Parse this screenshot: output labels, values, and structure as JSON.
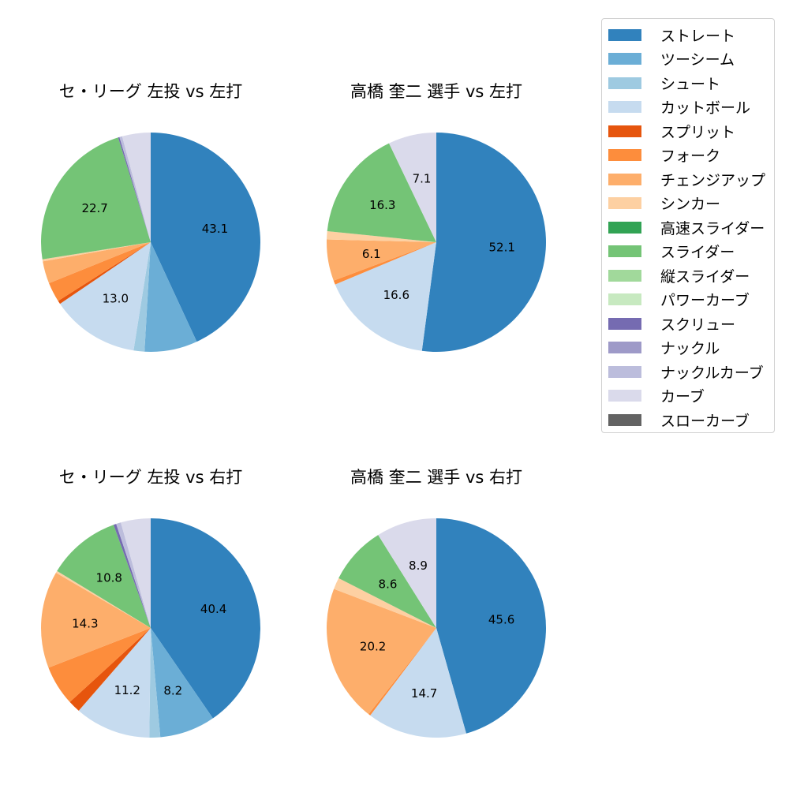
{
  "legend": {
    "items": [
      {
        "label": "ストレート",
        "color": "#3182bd"
      },
      {
        "label": "ツーシーム",
        "color": "#6baed6"
      },
      {
        "label": "シュート",
        "color": "#9ecae1"
      },
      {
        "label": "カットボール",
        "color": "#c6dbef"
      },
      {
        "label": "スプリット",
        "color": "#e6550d"
      },
      {
        "label": "フォーク",
        "color": "#fd8d3c"
      },
      {
        "label": "チェンジアップ",
        "color": "#fdae6b"
      },
      {
        "label": "シンカー",
        "color": "#fdd0a2"
      },
      {
        "label": "高速スライダー",
        "color": "#31a354"
      },
      {
        "label": "スライダー",
        "color": "#74c476"
      },
      {
        "label": "縦スライダー",
        "color": "#a1d99b"
      },
      {
        "label": "パワーカーブ",
        "color": "#c7e9c0"
      },
      {
        "label": "スクリュー",
        "color": "#756bb1"
      },
      {
        "label": "ナックル",
        "color": "#9e9ac8"
      },
      {
        "label": "ナックルカーブ",
        "color": "#bcbddc"
      },
      {
        "label": "カーブ",
        "color": "#dadaeb"
      },
      {
        "label": "スローカーブ",
        "color": "#636363"
      }
    ]
  },
  "chart_data": [
    {
      "type": "pie",
      "title": "セ・リーグ 左投 vs 左打",
      "categories": [
        "ストレート",
        "ツーシーム",
        "シュート",
        "カットボール",
        "スプリット",
        "フォーク",
        "チェンジアップ",
        "シンカー",
        "スライダー",
        "スクリュー",
        "ナックルカーブ",
        "カーブ"
      ],
      "values": [
        43.1,
        7.8,
        1.6,
        13.0,
        0.5,
        2.9,
        3.3,
        0.3,
        22.7,
        0.2,
        0.4,
        4.2
      ],
      "labels_shown": [
        "43.1",
        "",
        "",
        "13.0",
        "",
        "",
        "",
        "",
        "22.7",
        "",
        "",
        ""
      ],
      "colors": [
        "#3182bd",
        "#6baed6",
        "#9ecae1",
        "#c6dbef",
        "#e6550d",
        "#fd8d3c",
        "#fdae6b",
        "#fdd0a2",
        "#74c476",
        "#756bb1",
        "#bcbddc",
        "#dadaeb"
      ]
    },
    {
      "type": "pie",
      "title": "高橋 奎二 選手 vs 左打",
      "categories": [
        "ストレート",
        "カットボール",
        "フォーク",
        "チェンジアップ",
        "シンカー",
        "スライダー",
        "カーブ"
      ],
      "values": [
        52.1,
        16.6,
        0.6,
        6.1,
        1.2,
        16.3,
        7.1
      ],
      "labels_shown": [
        "52.1",
        "16.6",
        "",
        "6.1",
        "",
        "16.3",
        "7.1"
      ],
      "colors": [
        "#3182bd",
        "#c6dbef",
        "#fd8d3c",
        "#fdae6b",
        "#fdd0a2",
        "#74c476",
        "#dadaeb"
      ]
    },
    {
      "type": "pie",
      "title": "セ・リーグ 左投 vs 右打",
      "categories": [
        "ストレート",
        "ツーシーム",
        "シュート",
        "カットボール",
        "スプリット",
        "フォーク",
        "チェンジアップ",
        "シンカー",
        "スライダー",
        "スクリュー",
        "ナックルカーブ",
        "カーブ"
      ],
      "values": [
        40.4,
        8.2,
        1.6,
        11.2,
        1.8,
        5.9,
        14.3,
        0.3,
        10.8,
        0.4,
        0.7,
        4.4
      ],
      "labels_shown": [
        "40.4",
        "8.2",
        "",
        "11.2",
        "",
        "",
        "14.3",
        "",
        "10.8",
        "",
        "",
        ""
      ],
      "colors": [
        "#3182bd",
        "#6baed6",
        "#9ecae1",
        "#c6dbef",
        "#e6550d",
        "#fd8d3c",
        "#fdae6b",
        "#fdd0a2",
        "#74c476",
        "#756bb1",
        "#bcbddc",
        "#dadaeb"
      ]
    },
    {
      "type": "pie",
      "title": "高橋 奎二 選手 vs 右打",
      "categories": [
        "ストレート",
        "カットボール",
        "フォーク",
        "チェンジアップ",
        "シンカー",
        "スライダー",
        "カーブ"
      ],
      "values": [
        45.6,
        14.7,
        0.3,
        20.2,
        1.7,
        8.6,
        8.9
      ],
      "labels_shown": [
        "45.6",
        "14.7",
        "",
        "20.2",
        "",
        "8.6",
        "8.9"
      ],
      "colors": [
        "#3182bd",
        "#c6dbef",
        "#fd8d3c",
        "#fdae6b",
        "#fdd0a2",
        "#74c476",
        "#dadaeb"
      ]
    }
  ]
}
